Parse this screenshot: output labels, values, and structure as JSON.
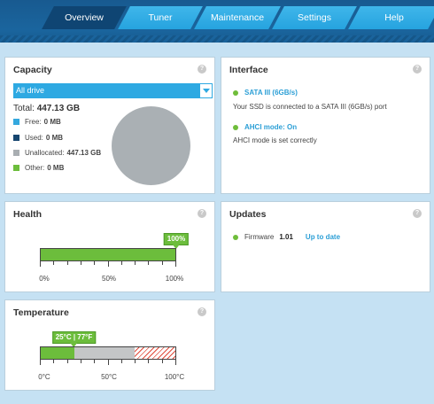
{
  "nav": {
    "tabs": [
      {
        "label": "Overview",
        "active": true
      },
      {
        "label": "Tuner",
        "active": false
      },
      {
        "label": "Maintenance",
        "active": false
      },
      {
        "label": "Settings",
        "active": false
      },
      {
        "label": "Help",
        "active": false
      }
    ]
  },
  "capacity": {
    "title": "Capacity",
    "help": "?",
    "drive_select": "All drive",
    "total_label": "Total:",
    "total_value": "447.13 GB",
    "legend": [
      {
        "label": "Free:",
        "value": "0 MB",
        "color": "#34a8de"
      },
      {
        "label": "Used:",
        "value": "0 MB",
        "color": "#16466f"
      },
      {
        "label": "Unallocated:",
        "value": "447.13 GB",
        "color": "#a9aeb2"
      },
      {
        "label": "Other:",
        "value": "0 MB",
        "color": "#6cbd3c"
      }
    ]
  },
  "interface": {
    "title": "Interface",
    "help": "?",
    "sata_status": "SATA III (6GB/s)",
    "sata_desc": "Your SSD is connected to a SATA III (6GB/s) port",
    "ahci_status": "AHCI mode: On",
    "ahci_desc": "AHCI mode is set correctly"
  },
  "health": {
    "title": "Health",
    "help": "?",
    "value_label": "100%",
    "value_fraction": 1.0,
    "scale": [
      "0%",
      "50%",
      "100%"
    ]
  },
  "updates": {
    "title": "Updates",
    "help": "?",
    "firmware_label": "Firmware",
    "firmware_value": "1.01",
    "firmware_status": "Up to date"
  },
  "temperature": {
    "title": "Temperature",
    "help": "?",
    "value_label": "25°C | 77°F",
    "value_celsius": 25,
    "scale": [
      "0°C",
      "50°C",
      "100°C"
    ],
    "scale_max": 100,
    "normal_range_max": 70
  }
}
